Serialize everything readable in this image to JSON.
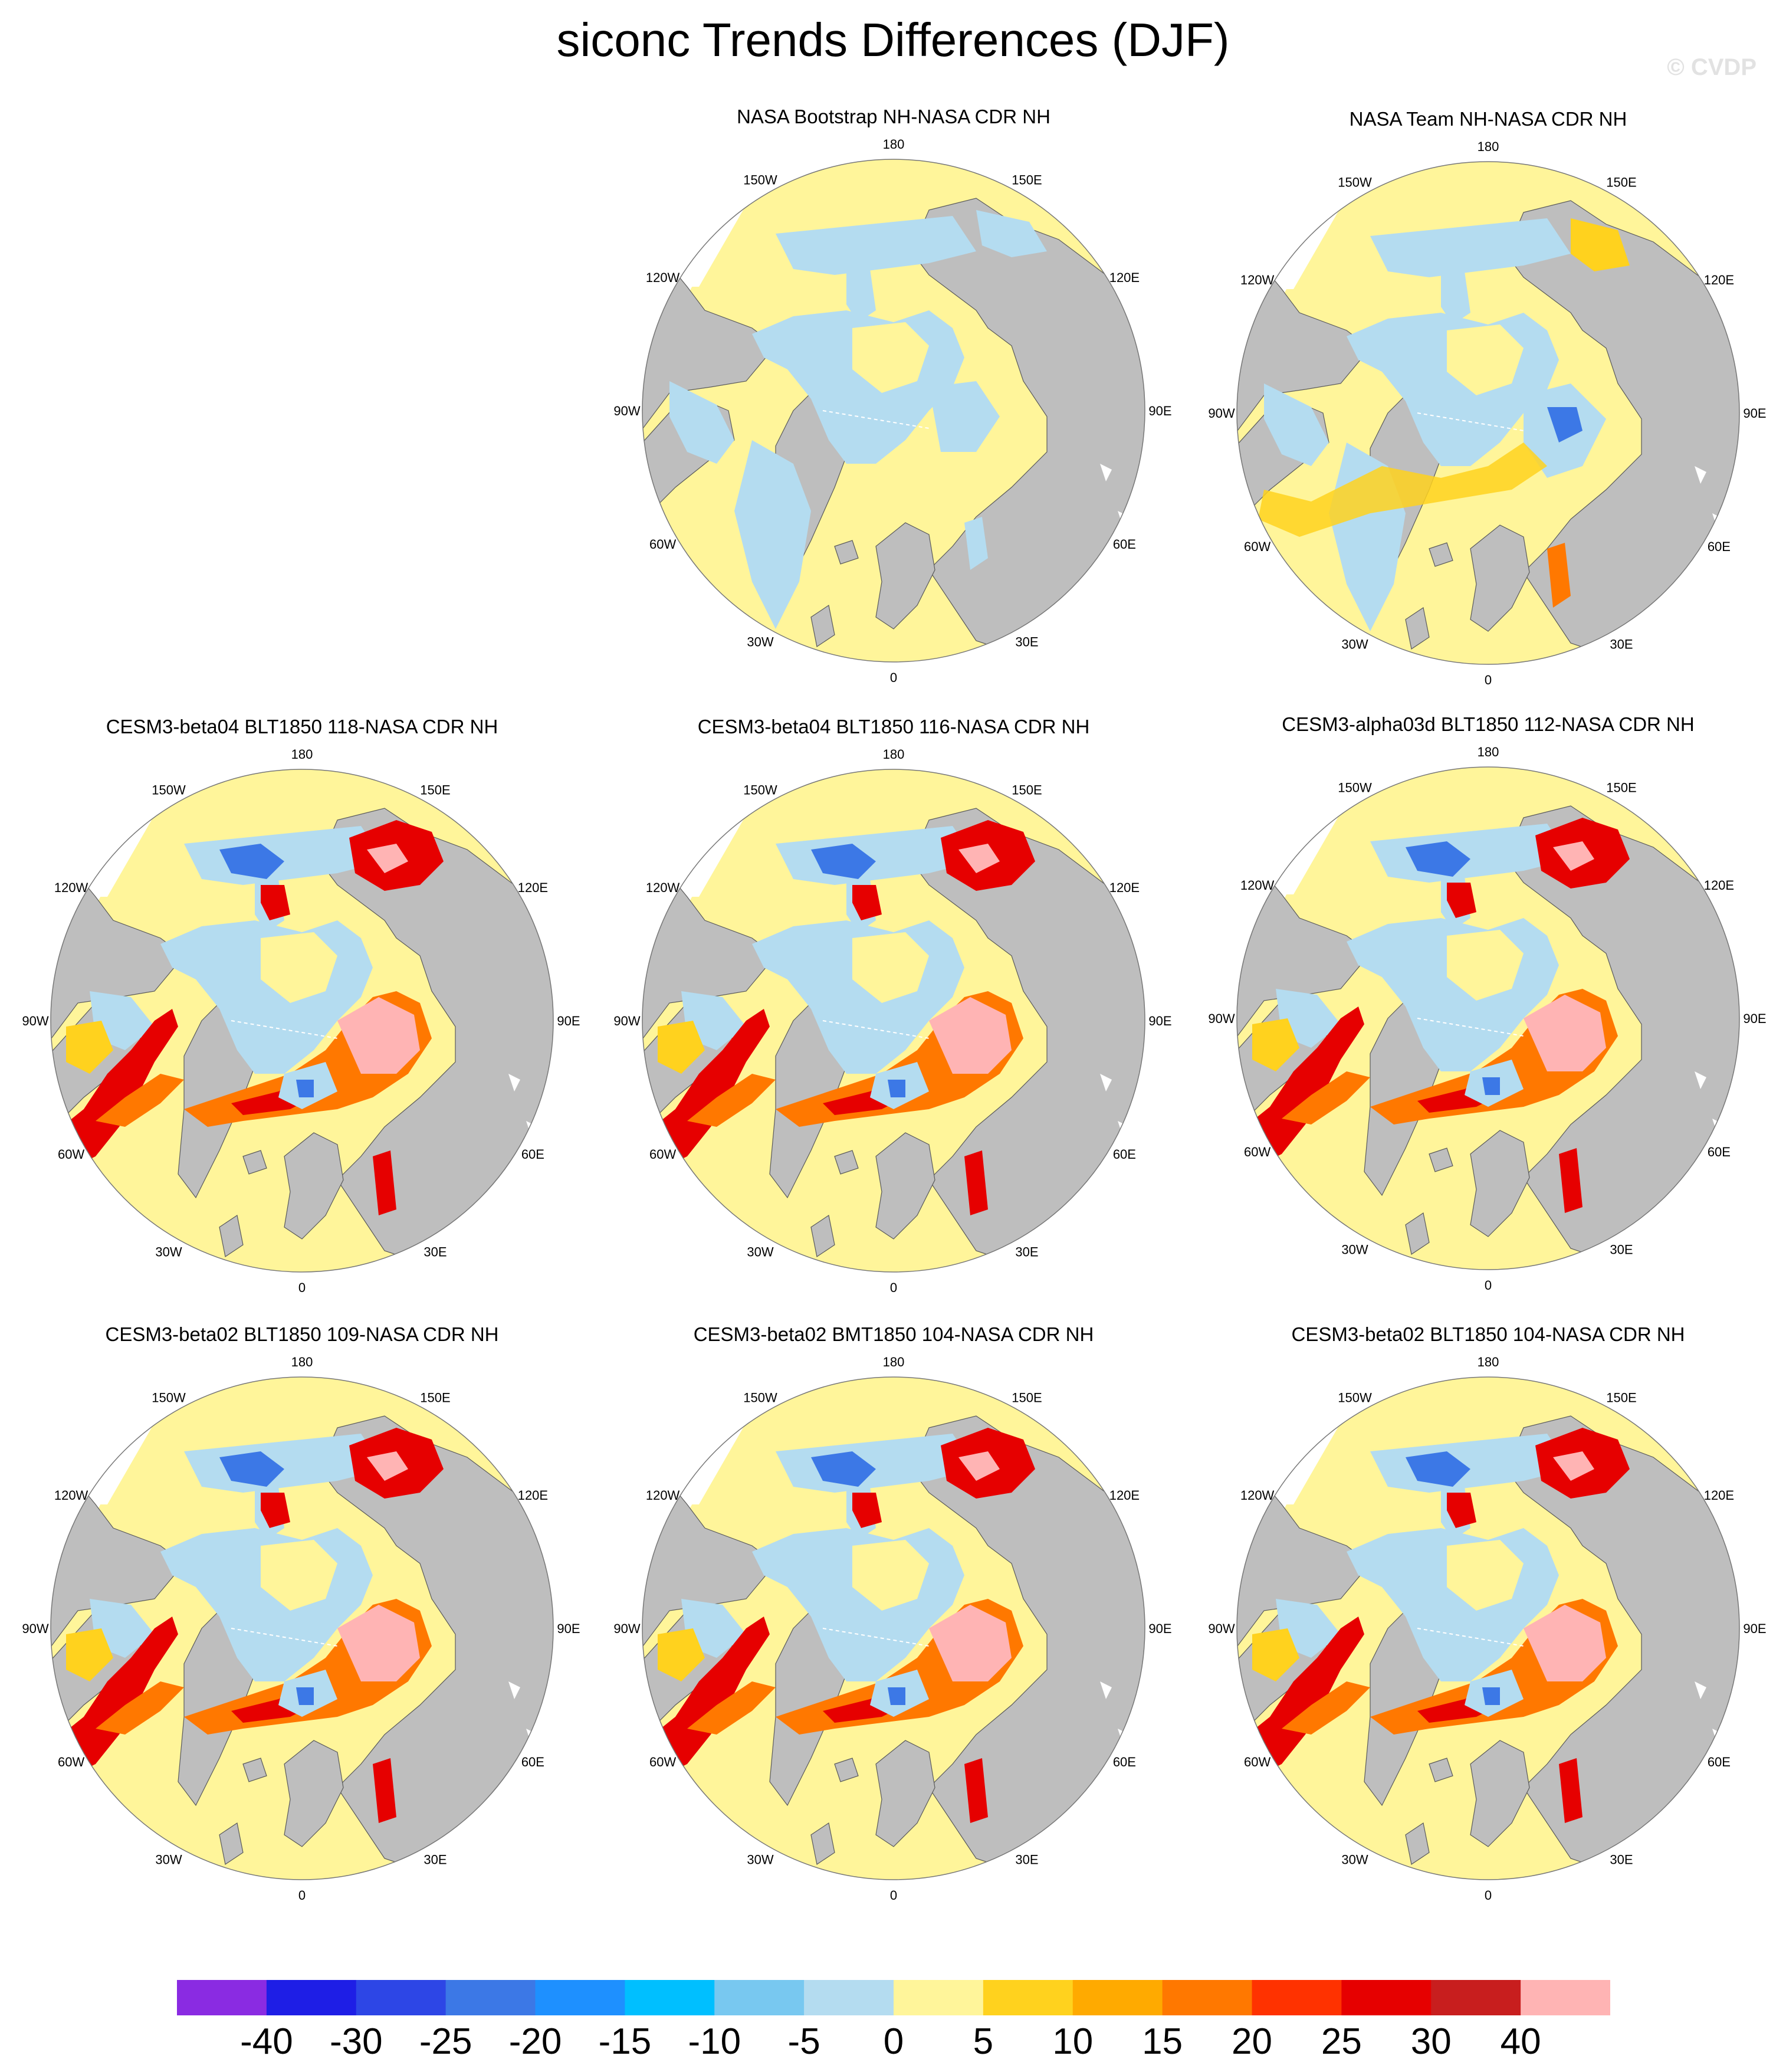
{
  "title": "siconc Trends Differences (DJF)",
  "watermark": "© CVDP",
  "panels": [
    {
      "title": "NASA Bootstrap NH-NASA CDR NH",
      "pattern": "bootstrap"
    },
    {
      "title": "NASA Team NH-NASA CDR NH",
      "pattern": "team"
    },
    {
      "title": "CESM3-beta04 BLT1850 118-NASA CDR NH",
      "pattern": "model"
    },
    {
      "title": "CESM3-beta04 BLT1850 116-NASA CDR NH",
      "pattern": "model"
    },
    {
      "title": "CESM3-alpha03d BLT1850 112-NASA CDR NH",
      "pattern": "model"
    },
    {
      "title": "CESM3-beta02 BLT1850 109-NASA CDR NH",
      "pattern": "model"
    },
    {
      "title": "CESM3-beta02 BMT1850 104-NASA CDR NH",
      "pattern": "model"
    },
    {
      "title": "CESM3-beta02 BLT1850 104-NASA CDR NH",
      "pattern": "model"
    }
  ],
  "lon_labels": {
    "top": "180",
    "tr1": "150E",
    "tr2": "120E",
    "right": "90E",
    "br1": "60E",
    "br2": "30E",
    "bottom": "0",
    "bl1": "30W",
    "bl2": "60W",
    "left": "90W",
    "tl2": "120W",
    "tl1": "150W"
  },
  "colorbar": {
    "colors": [
      "#8a2be2",
      "#1e1ee6",
      "#2d46e6",
      "#3c78e6",
      "#1e90ff",
      "#00bfff",
      "#78c8f0",
      "#b4dcf0",
      "#fff59a",
      "#ffd21e",
      "#ffaa00",
      "#ff7800",
      "#ff3200",
      "#e60000",
      "#c81e1e",
      "#ffb4b4"
    ],
    "labels": [
      "-40",
      "-30",
      "-25",
      "-20",
      "-15",
      "-10",
      "-5",
      "0",
      "5",
      "10",
      "15",
      "20",
      "25",
      "30",
      "40"
    ]
  }
}
